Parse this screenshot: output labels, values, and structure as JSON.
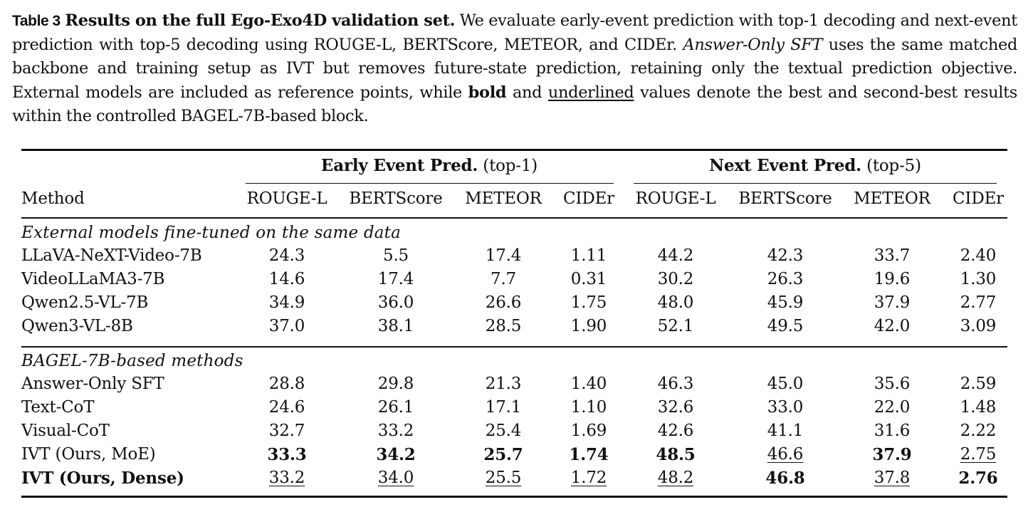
{
  "caption": {
    "label": "Table 3",
    "title": "Results on the full Ego-Exo4D validation set.",
    "text_1": "We evaluate early-event prediction with top-1 decoding and next-event prediction with top-5 decoding using ROUGE-L, BERTScore, METEOR, and CIDEr.",
    "emph_1": "Answer-Only SFT",
    "text_2": "uses the same matched backbone and training setup as IVT but removes future-state prediction, retaining only the textual prediction objective. External models are included as reference points, while",
    "bold_word": "bold",
    "text_3": "and",
    "underline_word": "underlined",
    "text_4": "values denote the best and second-best results within the controlled BAGEL-7B-based block."
  },
  "table": {
    "groups": [
      {
        "name": "Early Event Pred.",
        "suffix": "(top-1)"
      },
      {
        "name": "Next Event Pred.",
        "suffix": "(top-5)"
      }
    ],
    "method_header": "Method",
    "metric_headers": [
      "ROUGE-L",
      "BERTScore",
      "METEOR",
      "CIDEr",
      "ROUGE-L",
      "BERTScore",
      "METEOR",
      "CIDEr"
    ],
    "sections": [
      {
        "title": "External models fine-tuned on the same data",
        "rows": [
          {
            "method": "LLaVA-NeXT-Video-7B",
            "values": [
              "24.3",
              "5.5",
              "17.4",
              "1.11",
              "44.2",
              "42.3",
              "33.7",
              "2.40"
            ],
            "bold": [],
            "underline": []
          },
          {
            "method": "VideoLLaMA3-7B",
            "values": [
              "14.6",
              "17.4",
              "7.7",
              "0.31",
              "30.2",
              "26.3",
              "19.6",
              "1.30"
            ],
            "bold": [],
            "underline": []
          },
          {
            "method": "Qwen2.5-VL-7B",
            "values": [
              "34.9",
              "36.0",
              "26.6",
              "1.75",
              "48.0",
              "45.9",
              "37.9",
              "2.77"
            ],
            "bold": [],
            "underline": []
          },
          {
            "method": "Qwen3-VL-8B",
            "values": [
              "37.0",
              "38.1",
              "28.5",
              "1.90",
              "52.1",
              "49.5",
              "42.0",
              "3.09"
            ],
            "bold": [],
            "underline": []
          }
        ]
      },
      {
        "title": "BAGEL-7B-based methods",
        "rows": [
          {
            "method": "Answer-Only SFT",
            "values": [
              "28.8",
              "29.8",
              "21.3",
              "1.40",
              "46.3",
              "45.0",
              "35.6",
              "2.59"
            ],
            "bold": [],
            "underline": []
          },
          {
            "method": "Text-CoT",
            "values": [
              "24.6",
              "26.1",
              "17.1",
              "1.10",
              "32.6",
              "33.0",
              "22.0",
              "1.48"
            ],
            "bold": [],
            "underline": []
          },
          {
            "method": "Visual-CoT",
            "values": [
              "32.7",
              "33.2",
              "25.4",
              "1.69",
              "42.6",
              "41.1",
              "31.6",
              "2.22"
            ],
            "bold": [],
            "underline": []
          },
          {
            "method": "IVT (Ours, MoE)",
            "method_bold": false,
            "values": [
              "33.3",
              "34.2",
              "25.7",
              "1.74",
              "48.5",
              "46.6",
              "37.9",
              "2.75"
            ],
            "bold": [
              0,
              1,
              2,
              3,
              4,
              6
            ],
            "underline": [
              5,
              7
            ]
          },
          {
            "method": "IVT (Ours, Dense)",
            "method_bold": true,
            "values": [
              "33.2",
              "34.0",
              "25.5",
              "1.72",
              "48.2",
              "46.8",
              "37.8",
              "2.76"
            ],
            "bold": [
              5,
              7
            ],
            "underline": [
              0,
              1,
              2,
              3,
              4,
              6
            ]
          }
        ]
      }
    ]
  }
}
